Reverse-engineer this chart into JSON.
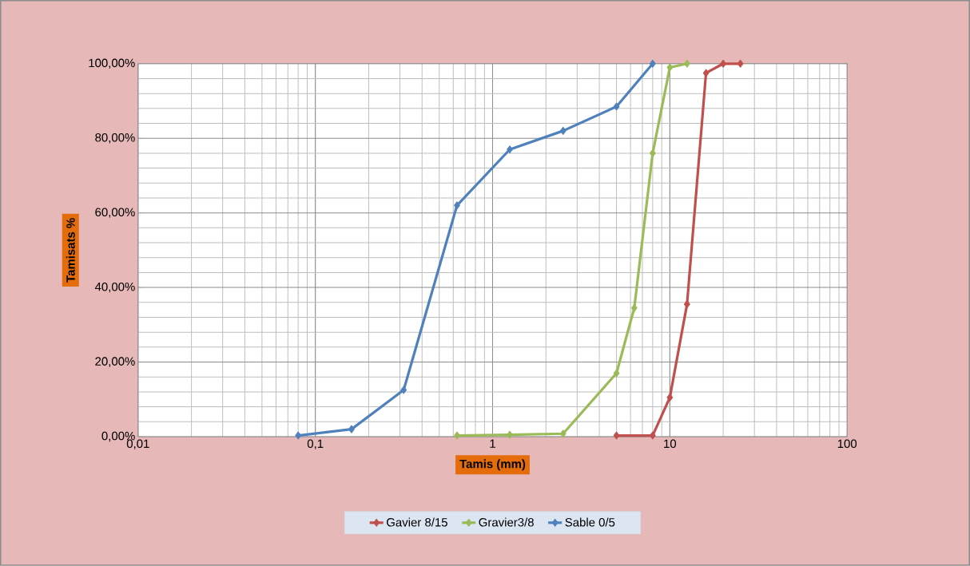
{
  "chart_data": {
    "type": "line",
    "xlabel": "Tamis (mm)",
    "ylabel": "Tamisats %",
    "series": [
      {
        "name": "Gavier 8/15",
        "color": "#c0504d",
        "x": [
          5,
          8,
          10,
          12.5,
          16,
          20,
          25
        ],
        "values": [
          0.3,
          0.3,
          10.5,
          35.5,
          97.5,
          100,
          100
        ]
      },
      {
        "name": "Gravier3/8",
        "color": "#9bbb59",
        "x": [
          0.63,
          1.25,
          2.5,
          5,
          6.3,
          8,
          10,
          12.5
        ],
        "values": [
          0.3,
          0.5,
          0.8,
          17,
          34.5,
          76,
          99,
          100
        ]
      },
      {
        "name": "Sable 0/5",
        "color": "#4f81bd",
        "x": [
          0.08,
          0.16,
          0.315,
          0.63,
          1.25,
          2.5,
          5,
          8
        ],
        "values": [
          0.3,
          2,
          12.5,
          62,
          77,
          82,
          88.5,
          100
        ]
      }
    ],
    "log": "x",
    "xlim": [
      0.01,
      100
    ],
    "xticks": [
      {
        "value": 0.01,
        "label": "0,01"
      },
      {
        "value": 0.1,
        "label": "0,1"
      },
      {
        "value": 1,
        "label": "1"
      },
      {
        "value": 10,
        "label": "10"
      },
      {
        "value": 100,
        "label": "100"
      }
    ],
    "ylim": [
      0,
      100
    ],
    "yticks": [
      {
        "value": 0,
        "label": "0,00%"
      },
      {
        "value": 20,
        "label": "20,00%"
      },
      {
        "value": 40,
        "label": "40,00%"
      },
      {
        "value": 60,
        "label": "60,00%"
      },
      {
        "value": 80,
        "label": "80,00%"
      },
      {
        "value": 100,
        "label": "100,00%"
      }
    ],
    "grid": true,
    "legend": "bottom",
    "marker": "diamond",
    "line_style": "solid"
  }
}
